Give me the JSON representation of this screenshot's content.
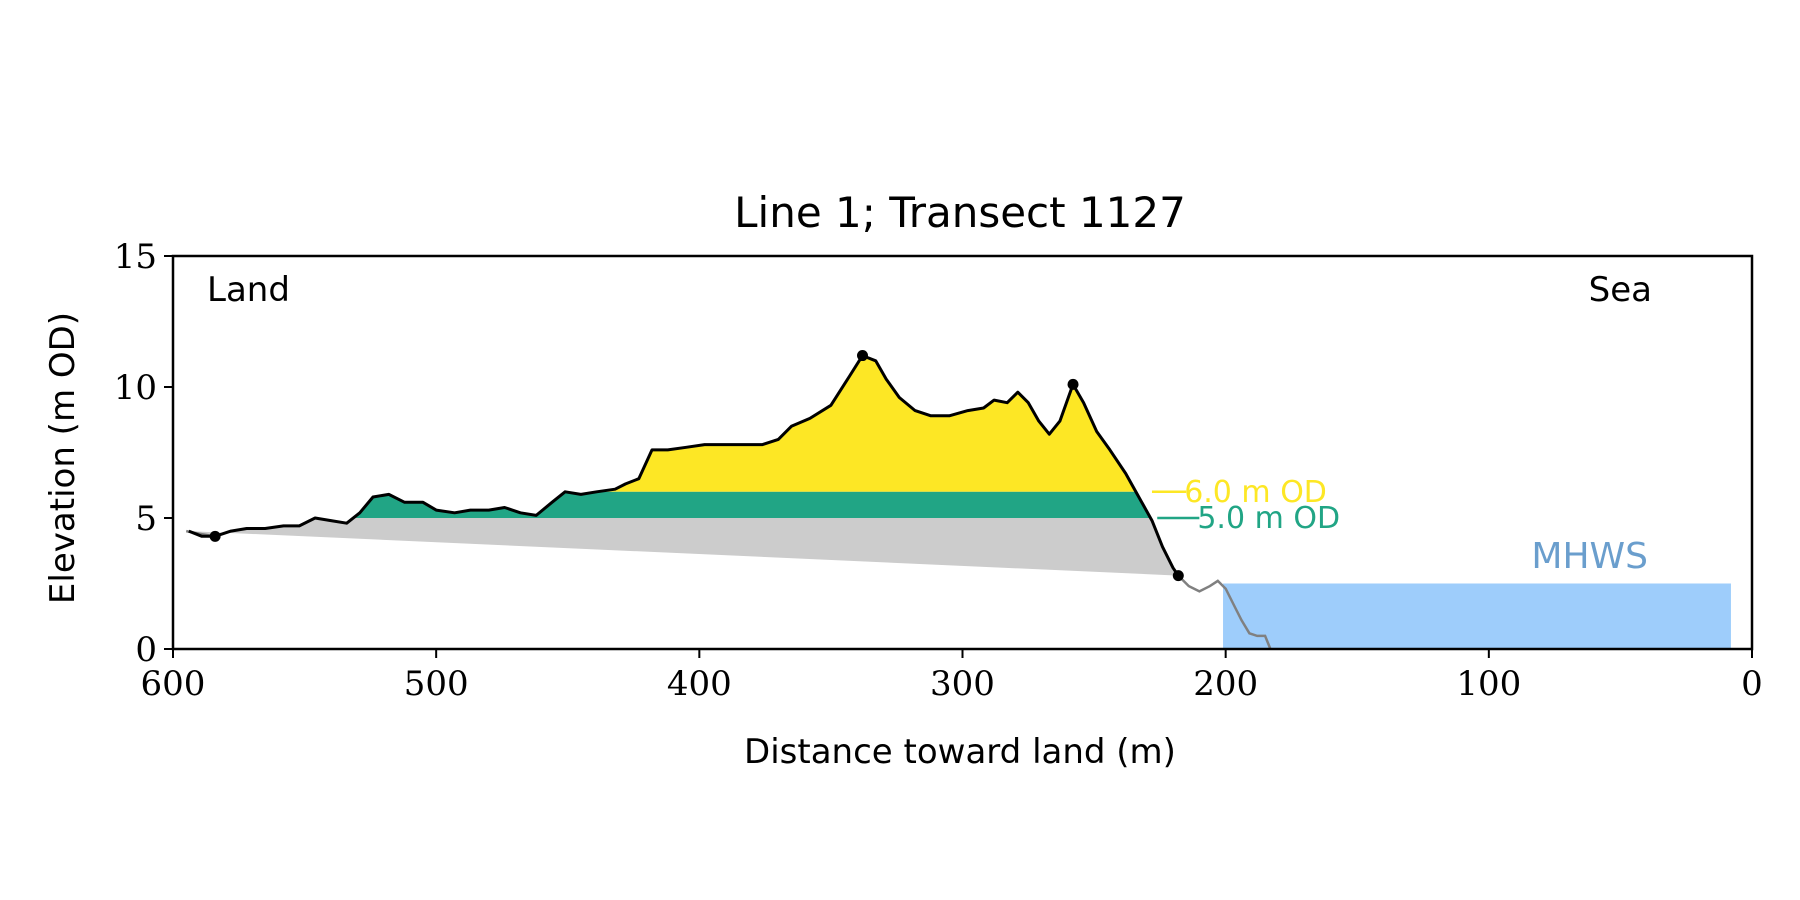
{
  "chart_data": {
    "type": "area",
    "title": "Line 1; Transect 1127",
    "xlabel": "Distance toward land (m)",
    "ylabel": "Elevation (m OD)",
    "xlim": [
      600,
      0
    ],
    "ylim": [
      0,
      15
    ],
    "x_ticks": [
      600,
      500,
      400,
      300,
      200,
      100,
      0
    ],
    "y_ticks": [
      0,
      5,
      10,
      15
    ],
    "grid": false,
    "corner_labels": {
      "left": "Land",
      "right": "Sea"
    },
    "profile": {
      "color": "#000000",
      "points": [
        [
          594,
          4.5
        ],
        [
          589,
          4.3
        ],
        [
          584,
          4.3
        ],
        [
          578,
          4.5
        ],
        [
          572,
          4.6
        ],
        [
          565,
          4.6
        ],
        [
          558,
          4.7
        ],
        [
          552,
          4.7
        ],
        [
          546,
          5.0
        ],
        [
          540,
          4.9
        ],
        [
          534,
          4.8
        ],
        [
          529,
          5.2
        ],
        [
          524,
          5.8
        ],
        [
          518,
          5.9
        ],
        [
          512,
          5.6
        ],
        [
          505,
          5.6
        ],
        [
          500,
          5.3
        ],
        [
          493,
          5.2
        ],
        [
          487,
          5.3
        ],
        [
          480,
          5.3
        ],
        [
          474,
          5.4
        ],
        [
          468,
          5.2
        ],
        [
          462,
          5.1
        ],
        [
          456,
          5.6
        ],
        [
          451,
          6.0
        ],
        [
          445,
          5.9
        ],
        [
          439,
          6.0
        ],
        [
          432,
          6.1
        ],
        [
          428,
          6.3
        ],
        [
          423,
          6.5
        ],
        [
          418,
          7.6
        ],
        [
          412,
          7.6
        ],
        [
          405,
          7.7
        ],
        [
          398,
          7.8
        ],
        [
          390,
          7.8
        ],
        [
          383,
          7.8
        ],
        [
          376,
          7.8
        ],
        [
          370,
          8.0
        ],
        [
          365,
          8.5
        ],
        [
          358,
          8.8
        ],
        [
          350,
          9.3
        ],
        [
          343,
          10.4
        ],
        [
          338,
          11.2
        ],
        [
          333,
          11.0
        ],
        [
          329,
          10.3
        ],
        [
          324,
          9.6
        ],
        [
          318,
          9.1
        ],
        [
          312,
          8.9
        ],
        [
          305,
          8.9
        ],
        [
          298,
          9.1
        ],
        [
          292,
          9.2
        ],
        [
          288,
          9.5
        ],
        [
          283,
          9.4
        ],
        [
          279,
          9.8
        ],
        [
          275,
          9.4
        ],
        [
          271,
          8.7
        ],
        [
          267,
          8.2
        ],
        [
          263,
          8.7
        ],
        [
          258,
          10.1
        ],
        [
          254,
          9.4
        ],
        [
          249,
          8.3
        ],
        [
          244,
          7.6
        ],
        [
          238,
          6.7
        ],
        [
          233,
          5.8
        ],
        [
          228,
          4.9
        ],
        [
          224,
          3.9
        ],
        [
          220,
          3.1
        ],
        [
          218,
          2.8
        ]
      ]
    },
    "seaward_profile": {
      "color": "#808080",
      "points": [
        [
          218,
          2.8
        ],
        [
          214,
          2.4
        ],
        [
          210,
          2.2
        ],
        [
          206,
          2.4
        ],
        [
          203,
          2.6
        ],
        [
          200,
          2.3
        ],
        [
          197,
          1.7
        ],
        [
          194,
          1.1
        ],
        [
          191,
          0.6
        ],
        [
          188,
          0.5
        ],
        [
          185,
          0.5
        ],
        [
          183,
          0.0
        ]
      ]
    },
    "landward_profile": {
      "color": "#808080",
      "points": [
        [
          595,
          4.5
        ],
        [
          590,
          4.4
        ],
        [
          584,
          4.3
        ]
      ]
    },
    "markers": [
      [
        584,
        4.3
      ],
      [
        338,
        11.2
      ],
      [
        258,
        10.1
      ],
      [
        218,
        2.8
      ]
    ],
    "base_line": [
      [
        584,
        4.3
      ],
      [
        218,
        2.8
      ]
    ],
    "levels": [
      {
        "label": "6.0 m OD",
        "value": 6.0,
        "color": "#fde725"
      },
      {
        "label": "5.0 m OD",
        "value": 5.0,
        "color": "#21a585"
      }
    ],
    "band_colors": {
      "above_6": "#fde725",
      "between_5_6": "#21a585",
      "below_5": "#cccccc"
    },
    "mhws": {
      "label": "MHWS",
      "value": 2.5,
      "x_from": 201,
      "x_to": 8,
      "color": "#9ecdfb",
      "label_color": "#6a9ecd"
    }
  }
}
